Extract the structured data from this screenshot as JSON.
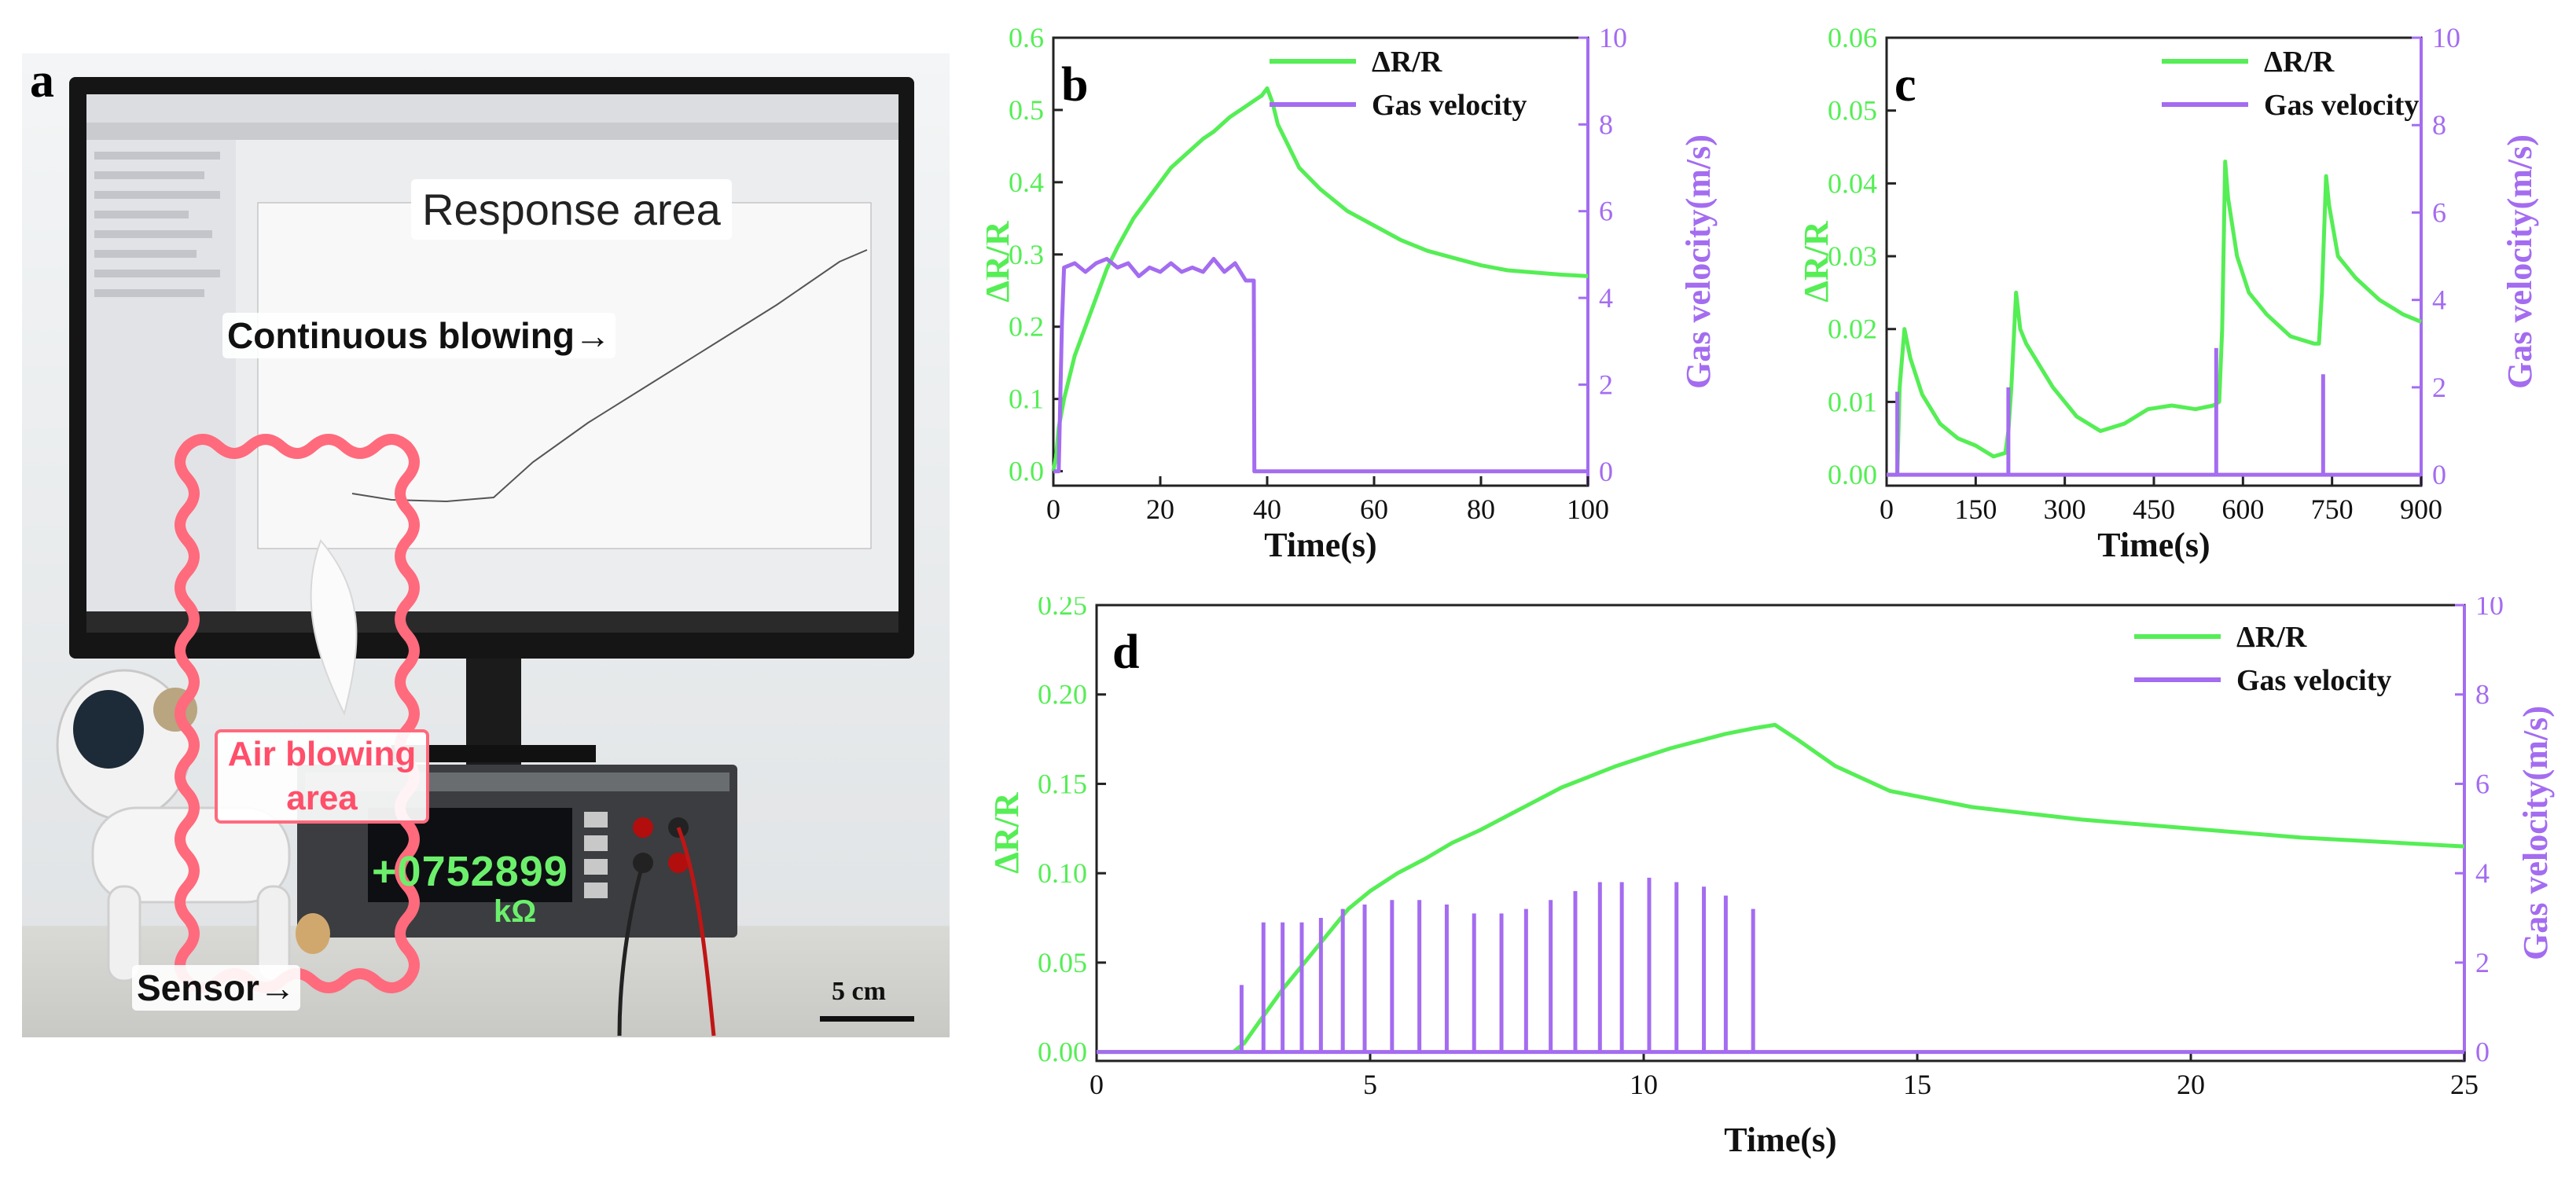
{
  "colors": {
    "resistance": "#55ee55",
    "velocity": "#a46cf0",
    "callout": "#ff6a7d",
    "axis": "#222222",
    "scale_bar": "#111111"
  },
  "panel_a": {
    "label": "a",
    "response_area": "Response area",
    "continuous_blowing": "Continuous blowing→",
    "air_blowing_line1": "Air blowing",
    "air_blowing_line2": "area",
    "sensor": "Sensor→",
    "meter_reading": "+0752899",
    "meter_unit": "kΩ",
    "scale_bar": "5 cm"
  },
  "chart_data": [
    {
      "id": "b",
      "panel_label": "b",
      "type": "line",
      "xlabel": "Time(s)",
      "ylabel": "ΔR/R",
      "y2label": "Gas velocity(m/s)",
      "xlim": [
        0,
        100
      ],
      "ylim": [
        -0.02,
        0.6
      ],
      "y2lim": [
        -0.33,
        10
      ],
      "xticks": [
        0,
        20,
        40,
        60,
        80,
        100
      ],
      "yticks": [
        0.0,
        0.1,
        0.2,
        0.3,
        0.4,
        0.5,
        0.6
      ],
      "y2ticks": [
        0,
        2,
        4,
        6,
        8,
        10
      ],
      "xtick_labels": [
        "0",
        "20",
        "40",
        "60",
        "80",
        "100"
      ],
      "ytick_labels": [
        "0.0",
        "0.1",
        "0.2",
        "0.3",
        "0.4",
        "0.5",
        "0.6"
      ],
      "y2tick_labels": [
        "0",
        "2",
        "4",
        "6",
        "8",
        "10"
      ],
      "legend": [
        "ΔR/R",
        "Gas velocity"
      ],
      "series": [
        {
          "name": "ΔR/R",
          "axis": "left",
          "x": [
            0,
            0.5,
            1,
            2,
            3,
            4,
            6,
            8,
            10,
            12,
            15,
            18,
            20,
            22,
            25,
            28,
            30,
            33,
            35,
            37,
            38,
            39,
            40,
            41,
            42,
            44,
            46,
            50,
            55,
            60,
            65,
            70,
            75,
            80,
            85,
            90,
            95,
            100
          ],
          "values": [
            0,
            0.02,
            0.06,
            0.1,
            0.13,
            0.16,
            0.2,
            0.24,
            0.28,
            0.31,
            0.35,
            0.38,
            0.4,
            0.42,
            0.44,
            0.46,
            0.47,
            0.49,
            0.5,
            0.51,
            0.515,
            0.52,
            0.53,
            0.51,
            0.48,
            0.45,
            0.42,
            0.39,
            0.36,
            0.34,
            0.32,
            0.305,
            0.295,
            0.285,
            0.278,
            0.275,
            0.272,
            0.27
          ]
        },
        {
          "name": "Gas velocity",
          "axis": "right",
          "x": [
            0,
            1,
            1.6,
            2,
            4,
            6,
            8,
            10,
            12,
            14,
            16,
            18,
            20,
            22,
            24,
            26,
            28,
            30,
            32,
            34,
            36,
            37.5,
            37.6,
            38,
            40,
            100
          ],
          "values": [
            0,
            0,
            3.4,
            4.7,
            4.8,
            4.6,
            4.8,
            4.9,
            4.7,
            4.8,
            4.5,
            4.7,
            4.6,
            4.8,
            4.6,
            4.7,
            4.6,
            4.9,
            4.6,
            4.8,
            4.4,
            4.4,
            0,
            0,
            0,
            0
          ]
        }
      ]
    },
    {
      "id": "c",
      "panel_label": "c",
      "type": "line",
      "xlabel": "Time(s)",
      "ylabel": "ΔR/R",
      "y2label": "Gas velocity(m/s)",
      "xlim": [
        0,
        900
      ],
      "ylim": [
        -0.0015,
        0.06
      ],
      "y2lim": [
        -0.25,
        10
      ],
      "xticks": [
        0,
        150,
        300,
        450,
        600,
        750,
        900
      ],
      "yticks": [
        0.0,
        0.01,
        0.02,
        0.03,
        0.04,
        0.05,
        0.06
      ],
      "y2ticks": [
        0,
        2,
        4,
        6,
        8,
        10
      ],
      "xtick_labels": [
        "0",
        "150",
        "300",
        "450",
        "600",
        "750",
        "900"
      ],
      "ytick_labels": [
        "0.00",
        "0.01",
        "0.02",
        "0.03",
        "0.04",
        "0.05",
        "0.06"
      ],
      "y2tick_labels": [
        "0",
        "2",
        "4",
        "6",
        "8",
        "10"
      ],
      "legend": [
        "ΔR/R",
        "Gas velocity"
      ],
      "series": [
        {
          "name": "ΔR/R",
          "axis": "left",
          "x": [
            0,
            18,
            22,
            30,
            40,
            60,
            90,
            120,
            150,
            180,
            200,
            205,
            210,
            218,
            225,
            235,
            250,
            280,
            320,
            360,
            400,
            440,
            480,
            520,
            550,
            560,
            565,
            570,
            575,
            590,
            610,
            640,
            680,
            720,
            728,
            733,
            740,
            745,
            760,
            790,
            830,
            870,
            900
          ],
          "values": [
            0,
            0,
            0.012,
            0.02,
            0.016,
            0.011,
            0.007,
            0.005,
            0.004,
            0.0025,
            0.003,
            0.006,
            0.012,
            0.025,
            0.02,
            0.018,
            0.016,
            0.012,
            0.008,
            0.006,
            0.007,
            0.009,
            0.0095,
            0.009,
            0.0095,
            0.01,
            0.02,
            0.043,
            0.038,
            0.03,
            0.025,
            0.022,
            0.019,
            0.018,
            0.018,
            0.025,
            0.041,
            0.037,
            0.03,
            0.027,
            0.024,
            0.022,
            0.021
          ]
        },
        {
          "name": "Gas velocity",
          "axis": "right",
          "pulses_x": [
            18,
            205,
            555,
            735
          ],
          "pulses_values": [
            1.9,
            2.0,
            2.9,
            2.3
          ]
        }
      ]
    },
    {
      "id": "d",
      "panel_label": "d",
      "type": "line",
      "xlabel": "Time(s)",
      "ylabel": "ΔR/R",
      "y2label": "Gas velocity(m/s)",
      "xlim": [
        0,
        25
      ],
      "ylim": [
        -0.005,
        0.25
      ],
      "y2lim": [
        -0.2,
        10
      ],
      "xticks": [
        0,
        5,
        10,
        15,
        20,
        25
      ],
      "yticks": [
        0.0,
        0.05,
        0.1,
        0.15,
        0.2,
        0.25
      ],
      "y2ticks": [
        0,
        2,
        4,
        6,
        8,
        10
      ],
      "xtick_labels": [
        "0",
        "5",
        "10",
        "15",
        "20",
        "25"
      ],
      "ytick_labels": [
        "0.00",
        "0.05",
        "0.10",
        "0.15",
        "0.20",
        "0.25"
      ],
      "y2tick_labels": [
        "0",
        "2",
        "4",
        "6",
        "8",
        "10"
      ],
      "legend": [
        "ΔR/R",
        "Gas velocity"
      ],
      "series": [
        {
          "name": "ΔR/R",
          "axis": "left",
          "x": [
            0,
            2.5,
            2.7,
            3.0,
            3.4,
            3.8,
            4.2,
            4.6,
            5.0,
            5.5,
            6.0,
            6.5,
            7.0,
            7.5,
            8.0,
            8.5,
            9.0,
            9.5,
            10.0,
            10.5,
            11.0,
            11.5,
            12.0,
            12.4,
            12.8,
            13.5,
            14.5,
            16,
            18,
            20,
            22,
            25
          ],
          "values": [
            0,
            0,
            0.005,
            0.018,
            0.035,
            0.05,
            0.065,
            0.08,
            0.09,
            0.1,
            0.108,
            0.117,
            0.124,
            0.132,
            0.14,
            0.148,
            0.154,
            0.16,
            0.165,
            0.17,
            0.174,
            0.178,
            0.181,
            0.183,
            0.175,
            0.16,
            0.146,
            0.137,
            0.13,
            0.125,
            0.12,
            0.115
          ]
        },
        {
          "name": "Gas velocity",
          "axis": "right",
          "pulses_x": [
            2.65,
            3.05,
            3.4,
            3.75,
            4.1,
            4.5,
            4.9,
            5.4,
            5.9,
            6.4,
            6.9,
            7.4,
            7.85,
            8.3,
            8.75,
            9.2,
            9.6,
            10.1,
            10.6,
            11.1,
            11.5,
            12.0
          ],
          "pulses_values": [
            1.5,
            2.9,
            2.9,
            2.9,
            3.0,
            3.2,
            3.3,
            3.4,
            3.4,
            3.3,
            3.1,
            3.1,
            3.2,
            3.4,
            3.6,
            3.8,
            3.8,
            3.9,
            3.8,
            3.7,
            3.5,
            3.2
          ]
        }
      ]
    }
  ]
}
